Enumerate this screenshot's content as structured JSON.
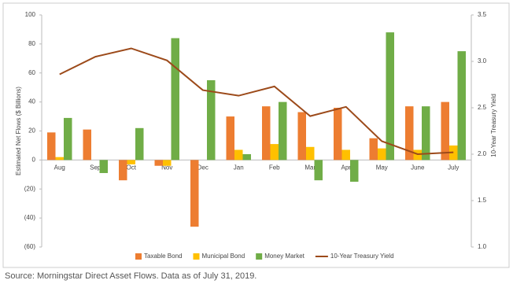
{
  "chart_data": {
    "type": "bar",
    "categories": [
      "Aug",
      "Sep",
      "Oct",
      "Nov",
      "Dec",
      "Jan",
      "Feb",
      "Mar",
      "Apr",
      "May",
      "June",
      "July"
    ],
    "y_label": "Estimated Net Flows ($ Billions)",
    "y2_label": "10-Year Treasury Yield",
    "ylim": [
      -60,
      100
    ],
    "yticks": [
      100,
      80,
      60,
      40,
      20,
      0,
      {
        "value": -20,
        "label": "(20)"
      },
      {
        "value": -40,
        "label": "(40)"
      },
      {
        "value": -60,
        "label": "(60)"
      }
    ],
    "y2lim": [
      1.0,
      3.5
    ],
    "y2ticks": [
      3.5,
      {
        "value": 3.0,
        "label": "3.0"
      },
      2.5,
      {
        "value": 2.0,
        "label": "2.0"
      },
      1.5,
      {
        "value": 1.0,
        "label": "1.0"
      }
    ],
    "series": [
      {
        "name": "Taxable Bond",
        "color": "#ed7d31",
        "values": [
          19,
          21,
          -14,
          -4,
          -46,
          30,
          37,
          33,
          36,
          15,
          37,
          40
        ]
      },
      {
        "name": "Municipal Bond",
        "color": "#ffc000",
        "values": [
          2,
          0,
          -3,
          -4,
          0,
          7,
          11,
          9,
          7,
          8,
          7,
          10
        ]
      },
      {
        "name": "Money Market",
        "color": "#70ad47",
        "values": [
          29,
          -9,
          22,
          84,
          55,
          4,
          40,
          -14,
          -15,
          88,
          37,
          75
        ]
      },
      {
        "name": "10-Year Treasury Yield",
        "color": "#9c4a1a",
        "type": "line",
        "axis": "y2",
        "values": [
          2.86,
          3.05,
          3.14,
          3.01,
          2.69,
          2.63,
          2.73,
          2.41,
          2.51,
          2.14,
          2.0,
          2.02
        ]
      }
    ]
  },
  "source": "Source: Morningstar Direct Asset Flows. Data as of July 31, 2019."
}
